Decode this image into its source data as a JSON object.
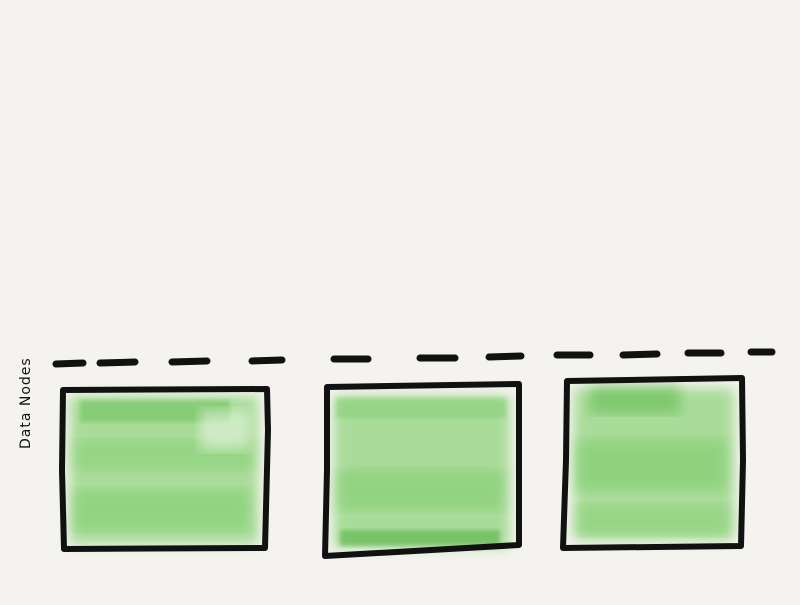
{
  "diagram": {
    "label": "Data Nodes",
    "node_count": 3,
    "colors": {
      "background": "#f4f3ef",
      "stroke": "#111111",
      "fill_light": "#a8dc98",
      "fill_mid": "#7ccb6a",
      "fill_dark": "#4fae40"
    }
  }
}
